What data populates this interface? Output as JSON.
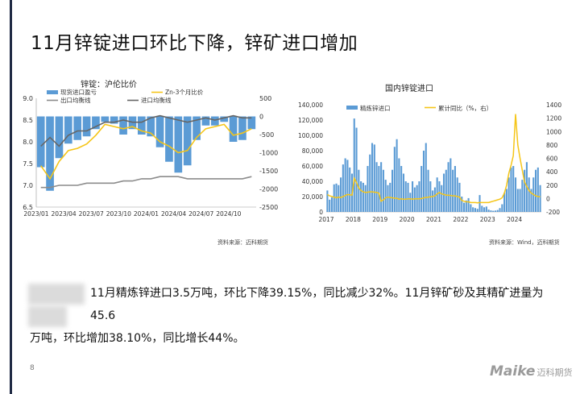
{
  "slide": {
    "title": "11月锌锭进口环比下降，锌矿进口增加",
    "body_line1": "11月精炼锌进口3.5万吨，环比下降39.15%，同比减少32%。11月锌矿砂及其精矿进量为45.6",
    "body_line2": "万吨，环比增加38.10%，同比增长44%。",
    "page_number": "8",
    "logo_main": "Maike",
    "logo_sub": "迈科期货"
  },
  "colors": {
    "bar": "#5b9bd5",
    "yellow": "#f5c518",
    "gray": "#8c8c8c",
    "dark_gray": "#666666"
  },
  "chart_data": [
    {
      "type": "bar+line",
      "title": "锌锭：沪伦比价",
      "source": "资料来源：迈科期货",
      "legend": [
        "现货进口盈亏",
        "Zn-3个月比价",
        "出口均衡线",
        "进口均衡线"
      ],
      "legend_position": "top",
      "x_tick_labels": [
        "2023/01",
        "2023/04",
        "2023/07",
        "2023/10",
        "2024/01",
        "2024/04",
        "2024/07",
        "2024/10"
      ],
      "y_left": {
        "range": [
          6.5,
          9.0
        ],
        "ticks": [
          "6.5",
          "7.0",
          "7.5",
          "8.0",
          "8.5",
          "9.0"
        ]
      },
      "y_right": {
        "range": [
          -2500,
          500
        ],
        "ticks": [
          "-2500",
          "-2000",
          "-1500",
          "-1000",
          "-500",
          "0",
          "500"
        ]
      },
      "months": [
        "2023-01",
        "2023-02",
        "2023-03",
        "2023-04",
        "2023-05",
        "2023-06",
        "2023-07",
        "2023-08",
        "2023-09",
        "2023-10",
        "2023-11",
        "2023-12",
        "2024-01",
        "2024-02",
        "2024-03",
        "2024-04",
        "2024-05",
        "2024-06",
        "2024-07",
        "2024-08",
        "2024-09",
        "2024-10",
        "2024-11",
        "2024-12"
      ],
      "series": [
        {
          "name": "现货进口盈亏",
          "axis": "right",
          "values": [
            -1400,
            -2050,
            -1150,
            -750,
            -650,
            -550,
            -350,
            -150,
            -200,
            -500,
            -350,
            -500,
            -550,
            -850,
            -1250,
            -1550,
            -1350,
            -650,
            -250,
            -250,
            -150,
            -700,
            -650,
            -350
          ]
        },
        {
          "name": "Zn-3个月比价",
          "axis": "left",
          "values": [
            7.45,
            7.15,
            7.55,
            7.8,
            7.85,
            7.95,
            8.15,
            8.4,
            8.35,
            8.3,
            8.35,
            8.25,
            8.2,
            8.0,
            7.9,
            7.75,
            7.8,
            8.1,
            8.3,
            8.35,
            8.4,
            8.15,
            8.2,
            8.3
          ]
        },
        {
          "name": "出口均衡线",
          "axis": "left",
          "values": [
            6.95,
            6.95,
            7.0,
            7.0,
            7.0,
            7.05,
            7.05,
            7.05,
            7.05,
            7.1,
            7.1,
            7.15,
            7.15,
            7.2,
            7.2,
            7.2,
            7.15,
            7.15,
            7.15,
            7.15,
            7.15,
            7.15,
            7.15,
            7.2
          ]
        },
        {
          "name": "进口均衡线",
          "axis": "left",
          "values": [
            7.9,
            8.1,
            7.9,
            8.15,
            8.25,
            8.25,
            8.35,
            8.45,
            8.45,
            8.5,
            8.45,
            8.45,
            8.55,
            8.6,
            8.55,
            8.5,
            8.45,
            8.5,
            8.55,
            8.5,
            8.55,
            8.6,
            8.55,
            8.55
          ]
        }
      ]
    },
    {
      "type": "bar+line",
      "title": "国内锌锭进口",
      "source": "资料来源：Wind，迈科期货",
      "legend": [
        "精炼锌进口",
        "累计同比（%，右）"
      ],
      "legend_position": "top",
      "x_tick_labels": [
        "2017",
        "2018",
        "2019",
        "2020",
        "2021",
        "2022",
        "2023",
        "2024"
      ],
      "y_left": {
        "range": [
          0,
          140000
        ],
        "ticks": [
          "0",
          "20,000",
          "40,000",
          "60,000",
          "80,000",
          "100,000",
          "120,000",
          "140,000"
        ]
      },
      "y_right": {
        "range": [
          -200,
          1400
        ],
        "ticks": [
          "-200",
          "0",
          "200",
          "400",
          "600",
          "800",
          "1000",
          "1200",
          "1400"
        ]
      },
      "months_start": "2017-01",
      "series": [
        {
          "name": "精炼锌进口",
          "axis": "left",
          "values": [
            28000,
            16000,
            19000,
            36000,
            37000,
            35000,
            45000,
            62000,
            70000,
            68000,
            58000,
            50000,
            122000,
            110000,
            55000,
            40000,
            38000,
            35000,
            60000,
            75000,
            90000,
            88000,
            65000,
            60000,
            65000,
            55000,
            42000,
            35000,
            38000,
            55000,
            85000,
            95000,
            70000,
            60000,
            50000,
            40000,
            38000,
            25000,
            40000,
            32000,
            35000,
            40000,
            60000,
            80000,
            90000,
            55000,
            40000,
            28000,
            32000,
            45000,
            40000,
            35000,
            50000,
            55000,
            65000,
            70000,
            55000,
            60000,
            45000,
            38000,
            20000,
            12000,
            15000,
            18000,
            10000,
            6000,
            5000,
            4000,
            22000,
            8000,
            6000,
            7000,
            3000,
            2000,
            1500,
            1800,
            2500,
            5000,
            10000,
            25000,
            30000,
            45000,
            58000,
            60000,
            45000,
            30000,
            30000,
            42000,
            55000,
            65000,
            45000,
            30000,
            45000,
            55000,
            58000,
            35000
          ]
        },
        {
          "name": "累计同比（%，右）",
          "axis": "right",
          "values": [
            60,
            40,
            30,
            20,
            10,
            20,
            15,
            30,
            45,
            60,
            55,
            50,
            300,
            240,
            160,
            120,
            100,
            90,
            95,
            100,
            100,
            95,
            90,
            80,
            -40,
            -20,
            10,
            20,
            15,
            10,
            5,
            5,
            -10,
            -5,
            -10,
            -10,
            -5,
            -5,
            -10,
            -5,
            -5,
            -5,
            0,
            10,
            15,
            20,
            25,
            30,
            40,
            70,
            90,
            70,
            60,
            50,
            50,
            45,
            40,
            40,
            30,
            20,
            -30,
            -40,
            -50,
            -50,
            -60,
            -60,
            -60,
            -65,
            -60,
            -60,
            -60,
            -60,
            -60,
            -50,
            -40,
            -30,
            -20,
            -10,
            10,
            80,
            200,
            380,
            500,
            640,
            1260,
            800,
            600,
            420,
            250,
            180,
            120,
            80,
            60,
            40,
            30,
            25
          ]
        }
      ]
    }
  ]
}
